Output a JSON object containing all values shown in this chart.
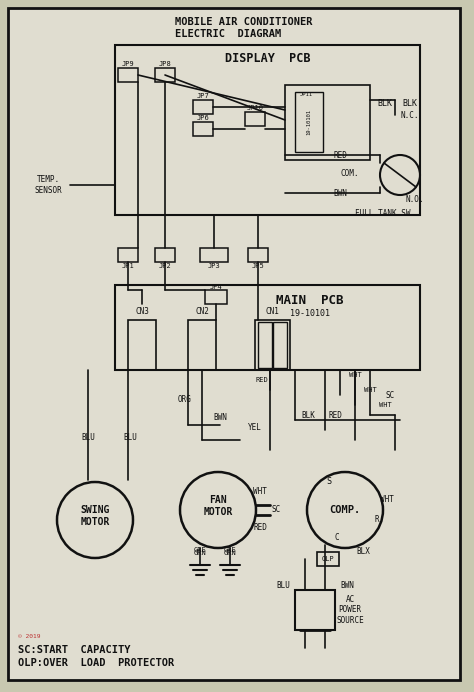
{
  "bg_color": "#c8c8b0",
  "paper_color": "#e0ddd0",
  "line_color": "#111111",
  "title1": "MOBILE AIR CONDITIONER",
  "title2": "ELECTRIC  DIAGRAM",
  "display_pcb_label": "DISPLAY  PCB",
  "main_pcb_label": "MAIN  PCB",
  "main_pcb_id": "19-10101",
  "footer1": "SC:START  CAPACITY",
  "footer2": "OLP:OVER  LOAD  PROTECTOR",
  "swing_motor": "SWING\nMOTOR",
  "fan_motor": "FAN\nMOTOR",
  "comp_label": "COMP."
}
